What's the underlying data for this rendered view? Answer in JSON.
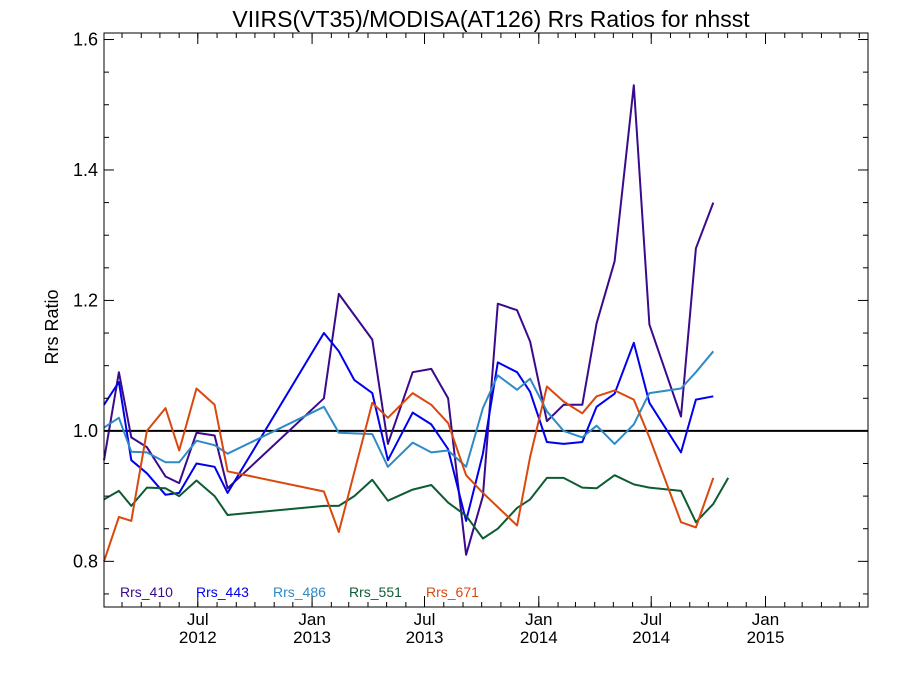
{
  "chart_data": {
    "type": "line",
    "title": "VIIRS(VT35)/MODISA(AT126)  Rrs Ratios for nhsst",
    "xlabel": "",
    "ylabel": "Rrs Ratio",
    "xlim": [
      "2012-02-01",
      "2015-06-15"
    ],
    "ylim": [
      0.73,
      1.61
    ],
    "yticks": [
      {
        "value": 0.8,
        "label": "0.8"
      },
      {
        "value": 1.0,
        "label": "1.0"
      },
      {
        "value": 1.2,
        "label": "1.2"
      },
      {
        "value": 1.4,
        "label": "1.4"
      },
      {
        "value": 1.6,
        "label": "1.6"
      }
    ],
    "xticks": [
      {
        "date": "2012-07-01",
        "label1": "Jul",
        "label2": "2012"
      },
      {
        "date": "2013-01-01",
        "label1": "Jan",
        "label2": "2013"
      },
      {
        "date": "2013-07-01",
        "label1": "Jul",
        "label2": "2013"
      },
      {
        "date": "2014-01-01",
        "label1": "Jan",
        "label2": "2014"
      },
      {
        "date": "2014-07-01",
        "label1": "Jul",
        "label2": "2014"
      },
      {
        "date": "2015-01-01",
        "label1": "Jan",
        "label2": "2015"
      }
    ],
    "reference_line": {
      "y": 1.0,
      "color": "#000000"
    },
    "legend_position": "bottom-left",
    "grid": false,
    "series": [
      {
        "name": "Rrs_410",
        "color": "#3a0a8c",
        "points": [
          [
            "2012-02-01",
            0.955
          ],
          [
            "2012-02-25",
            1.09
          ],
          [
            "2012-03-16",
            0.99
          ],
          [
            "2012-04-10",
            0.975
          ],
          [
            "2012-05-10",
            0.93
          ],
          [
            "2012-06-01",
            0.92
          ],
          [
            "2012-06-29",
            0.997
          ],
          [
            "2012-07-28",
            0.993
          ],
          [
            "2012-08-18",
            0.912
          ],
          [
            "2013-01-20",
            1.05
          ],
          [
            "2013-02-13",
            1.21
          ],
          [
            "2013-04-08",
            1.14
          ],
          [
            "2013-05-03",
            0.98
          ],
          [
            "2013-06-12",
            1.09
          ],
          [
            "2013-07-12",
            1.095
          ],
          [
            "2013-08-08",
            1.05
          ],
          [
            "2013-09-06",
            0.81
          ],
          [
            "2013-10-03",
            0.9
          ],
          [
            "2013-10-27",
            1.195
          ],
          [
            "2013-11-27",
            1.185
          ],
          [
            "2013-12-18",
            1.137
          ],
          [
            "2014-01-14",
            1.015
          ],
          [
            "2014-02-10",
            1.04
          ],
          [
            "2014-03-12",
            1.04
          ],
          [
            "2014-04-04",
            1.165
          ],
          [
            "2014-05-03",
            1.26
          ],
          [
            "2014-06-03",
            1.53
          ],
          [
            "2014-06-28",
            1.163
          ],
          [
            "2014-08-18",
            1.022
          ],
          [
            "2014-09-11",
            1.28
          ],
          [
            "2014-10-09",
            1.35
          ]
        ]
      },
      {
        "name": "Rrs_443",
        "color": "#0000ee",
        "points": [
          [
            "2012-02-01",
            1.04
          ],
          [
            "2012-02-25",
            1.075
          ],
          [
            "2012-03-16",
            0.955
          ],
          [
            "2012-04-10",
            0.935
          ],
          [
            "2012-05-10",
            0.902
          ],
          [
            "2012-06-01",
            0.905
          ],
          [
            "2012-06-29",
            0.95
          ],
          [
            "2012-07-28",
            0.945
          ],
          [
            "2012-08-18",
            0.905
          ],
          [
            "2013-01-20",
            1.15
          ],
          [
            "2013-02-13",
            1.122
          ],
          [
            "2013-03-10",
            1.078
          ],
          [
            "2013-04-08",
            1.058
          ],
          [
            "2013-05-03",
            0.955
          ],
          [
            "2013-06-12",
            1.028
          ],
          [
            "2013-07-12",
            1.01
          ],
          [
            "2013-08-08",
            0.972
          ],
          [
            "2013-09-06",
            0.862
          ],
          [
            "2013-10-03",
            0.965
          ],
          [
            "2013-10-27",
            1.105
          ],
          [
            "2013-11-27",
            1.09
          ],
          [
            "2013-12-18",
            1.06
          ],
          [
            "2014-01-14",
            0.983
          ],
          [
            "2014-02-10",
            0.98
          ],
          [
            "2014-03-12",
            0.983
          ],
          [
            "2014-04-04",
            1.037
          ],
          [
            "2014-05-03",
            1.057
          ],
          [
            "2014-06-03",
            1.135
          ],
          [
            "2014-06-28",
            1.043
          ],
          [
            "2014-08-18",
            0.967
          ],
          [
            "2014-09-11",
            1.048
          ],
          [
            "2014-10-09",
            1.053
          ]
        ]
      },
      {
        "name": "Rrs_486",
        "color": "#2f8ac6",
        "points": [
          [
            "2012-02-01",
            1.005
          ],
          [
            "2012-02-25",
            1.02
          ],
          [
            "2012-03-16",
            0.968
          ],
          [
            "2012-04-10",
            0.967
          ],
          [
            "2012-05-10",
            0.952
          ],
          [
            "2012-06-01",
            0.952
          ],
          [
            "2012-06-29",
            0.985
          ],
          [
            "2012-07-28",
            0.978
          ],
          [
            "2012-08-18",
            0.965
          ],
          [
            "2013-01-20",
            1.037
          ],
          [
            "2013-02-13",
            0.997
          ],
          [
            "2013-04-08",
            0.995
          ],
          [
            "2013-05-03",
            0.945
          ],
          [
            "2013-06-12",
            0.982
          ],
          [
            "2013-07-12",
            0.967
          ],
          [
            "2013-08-08",
            0.97
          ],
          [
            "2013-09-06",
            0.945
          ],
          [
            "2013-10-03",
            1.035
          ],
          [
            "2013-10-27",
            1.085
          ],
          [
            "2013-11-27",
            1.063
          ],
          [
            "2013-12-18",
            1.08
          ],
          [
            "2014-01-14",
            1.03
          ],
          [
            "2014-02-10",
            1.0
          ],
          [
            "2014-03-12",
            0.99
          ],
          [
            "2014-04-04",
            1.008
          ],
          [
            "2014-05-03",
            0.98
          ],
          [
            "2014-06-03",
            1.01
          ],
          [
            "2014-06-28",
            1.058
          ],
          [
            "2014-08-18",
            1.065
          ],
          [
            "2014-09-11",
            1.09
          ],
          [
            "2014-10-09",
            1.122
          ]
        ]
      },
      {
        "name": "Rrs_551",
        "color": "#0d5c32",
        "points": [
          [
            "2012-02-01",
            0.895
          ],
          [
            "2012-02-25",
            0.908
          ],
          [
            "2012-03-16",
            0.885
          ],
          [
            "2012-04-10",
            0.913
          ],
          [
            "2012-05-10",
            0.912
          ],
          [
            "2012-06-01",
            0.9
          ],
          [
            "2012-06-29",
            0.924
          ],
          [
            "2012-07-28",
            0.9
          ],
          [
            "2012-08-18",
            0.871
          ],
          [
            "2013-01-20",
            0.885
          ],
          [
            "2013-02-13",
            0.885
          ],
          [
            "2013-03-10",
            0.9
          ],
          [
            "2013-04-08",
            0.925
          ],
          [
            "2013-05-03",
            0.893
          ],
          [
            "2013-06-12",
            0.91
          ],
          [
            "2013-07-12",
            0.917
          ],
          [
            "2013-08-08",
            0.89
          ],
          [
            "2013-09-06",
            0.87
          ],
          [
            "2013-10-03",
            0.835
          ],
          [
            "2013-10-27",
            0.85
          ],
          [
            "2013-11-27",
            0.882
          ],
          [
            "2013-12-18",
            0.895
          ],
          [
            "2014-01-14",
            0.928
          ],
          [
            "2014-02-10",
            0.928
          ],
          [
            "2014-03-12",
            0.913
          ],
          [
            "2014-04-04",
            0.912
          ],
          [
            "2014-05-03",
            0.932
          ],
          [
            "2014-06-03",
            0.918
          ],
          [
            "2014-06-28",
            0.913
          ],
          [
            "2014-08-18",
            0.908
          ],
          [
            "2014-09-11",
            0.86
          ],
          [
            "2014-10-09",
            0.888
          ],
          [
            "2014-11-02",
            0.928
          ]
        ]
      },
      {
        "name": "Rrs_671",
        "color": "#d9480f",
        "points": [
          [
            "2012-02-01",
            0.8
          ],
          [
            "2012-02-25",
            0.868
          ],
          [
            "2012-03-16",
            0.862
          ],
          [
            "2012-04-10",
            1.0
          ],
          [
            "2012-05-10",
            1.035
          ],
          [
            "2012-06-01",
            0.97
          ],
          [
            "2012-06-29",
            1.065
          ],
          [
            "2012-07-28",
            1.04
          ],
          [
            "2012-08-18",
            0.938
          ],
          [
            "2013-01-20",
            0.907
          ],
          [
            "2013-02-13",
            0.845
          ],
          [
            "2013-04-08",
            1.043
          ],
          [
            "2013-05-03",
            1.02
          ],
          [
            "2013-06-12",
            1.058
          ],
          [
            "2013-07-12",
            1.04
          ],
          [
            "2013-08-08",
            1.012
          ],
          [
            "2013-09-06",
            0.932
          ],
          [
            "2013-10-03",
            0.905
          ],
          [
            "2013-11-27",
            0.855
          ],
          [
            "2013-12-18",
            0.96
          ],
          [
            "2014-01-14",
            1.068
          ],
          [
            "2014-02-10",
            1.045
          ],
          [
            "2014-03-12",
            1.027
          ],
          [
            "2014-04-04",
            1.053
          ],
          [
            "2014-05-03",
            1.062
          ],
          [
            "2014-06-03",
            1.048
          ],
          [
            "2014-06-28",
            0.99
          ],
          [
            "2014-08-18",
            0.86
          ],
          [
            "2014-09-11",
            0.852
          ],
          [
            "2014-10-09",
            0.928
          ]
        ]
      }
    ]
  }
}
